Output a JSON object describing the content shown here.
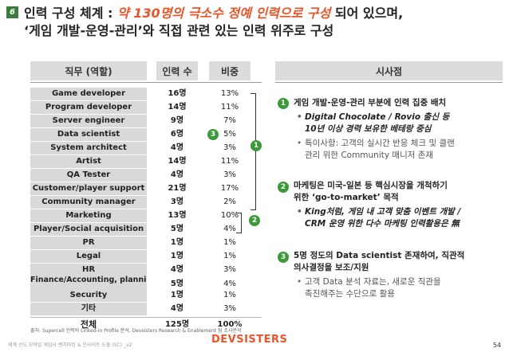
{
  "slide_number": "6",
  "title": {
    "line1_pre": "인력 구성 체계 : ",
    "line1_highlight": "약 130명의 극소수 정예 인력으로 구성",
    "line1_post": " 되어 있으며,",
    "line2": "‘게임 개발-운영-관리’와 직접 관련 있는 인력 위주로 구성"
  },
  "headers": {
    "role": "직무 (역할)",
    "count": "인력 수",
    "share": "비중",
    "insights": "시사점"
  },
  "rows": [
    {
      "role": "Game developer",
      "count": "16명",
      "share": "13%"
    },
    {
      "role": "Program developer",
      "count": "14명",
      "share": "11%"
    },
    {
      "role": "Server engineer",
      "count": "9명",
      "share": "7%"
    },
    {
      "role": "Data scientist",
      "count": "6명",
      "share": "5%"
    },
    {
      "role": "System architect",
      "count": "4명",
      "share": "3%"
    },
    {
      "role": "Artist",
      "count": "14명",
      "share": "11%"
    },
    {
      "role": "QA Tester",
      "count": "4명",
      "share": "3%"
    },
    {
      "role": "Customer/player support",
      "count": "21명",
      "share": "17%"
    },
    {
      "role": "Community manager",
      "count": "3명",
      "share": "2%"
    },
    {
      "role": "Marketing",
      "count": "13명",
      "share": "10%"
    },
    {
      "role": "Player/Social acquisition",
      "count": "5명",
      "share": "4%"
    },
    {
      "role": "PR",
      "count": "1명",
      "share": "1%"
    },
    {
      "role": "Legal",
      "count": "1명",
      "share": "1%"
    },
    {
      "role": "HR",
      "count": "4명",
      "share": "3%"
    },
    {
      "role": "Finance/Accounting, planning",
      "count": "5명",
      "share": "4%"
    },
    {
      "role": "Security",
      "count": "1명",
      "share": "1%"
    },
    {
      "role": "기타",
      "count": "4명",
      "share": "3%"
    }
  ],
  "total": {
    "role": "전체",
    "count": "125명",
    "share": "100%"
  },
  "markers": {
    "one": "1",
    "two": "2",
    "three": "3"
  },
  "insights": {
    "i1_num": "1",
    "i1_head": "게임 개발-운영-관리 부분에 인력 집중 배치",
    "i1_sub1a": "Digital Chocolate / Rovio 출신 등",
    "i1_sub1b": "10년 이상 경력 보유한 베테랑 중심",
    "i1_sub2a": "특이사항: 고객의 실시간 반응 체크 및 클랜",
    "i1_sub2b": "관리 위한 Community 매니저 존재",
    "i2_num": "2",
    "i2_head_a": "마케팅은 미국-일본 등 핵심시장을 개척하기",
    "i2_head_b": "위한 ‘go-to-market’ 목적",
    "i2_sub1a": "King처럼, 게임 내 고객 맞춤 이벤트 개발 /",
    "i2_sub1b": "CRM 운영 위한 다수 마케팅 인력활용은 無",
    "i3_num": "3",
    "i3_head_a": "5명 정도의 Data scientist 존재하여, 직관적",
    "i3_head_b": "의사결정을 보조/지원",
    "i3_sub1a": "고객 Data 분석 자료는, 새로운 직관을",
    "i3_sub1b": "촉진해주는 수단으로 활용"
  },
  "footnote": "출처: Supercell 인력의 Linked-in Profile 분석, Devsisters Research & Enablement 팀 조사분석",
  "footer_left": "세계 선도 모바일 게임사 벤치마킹 & 인사이트 도출 (SC) _v2",
  "logo": "DEVSISTERS",
  "page_number": "54",
  "colors": {
    "accent": "#e8552a",
    "marker": "#3a9a3a",
    "header_bg": "#dcdcdc",
    "role_bg": "#d9d9d9"
  }
}
